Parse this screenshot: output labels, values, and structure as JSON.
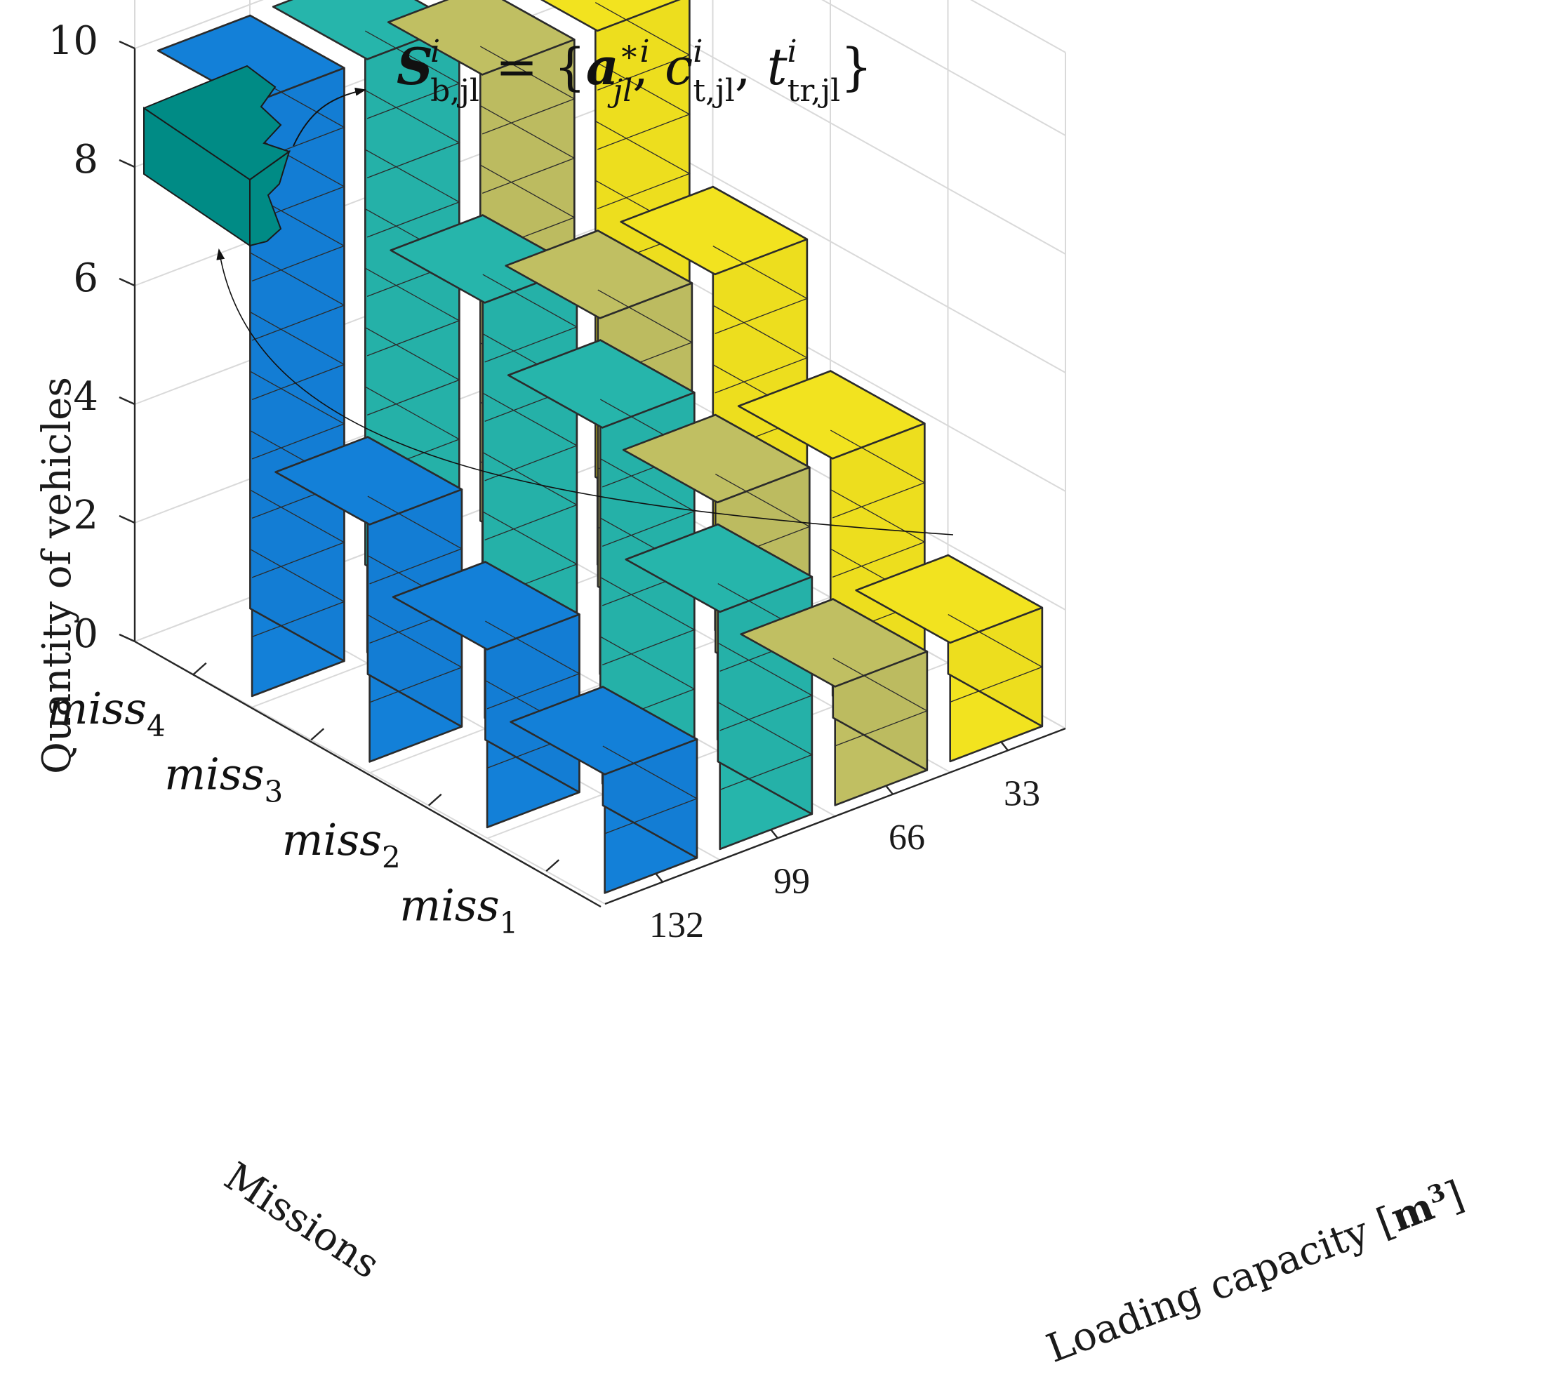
{
  "chart_data": {
    "type": "bar3d",
    "zlabel": "Quantity of vehicles",
    "ylabel": "Missions",
    "xlabel": "Loading capacity [m³]",
    "xlabel_main": "Loading capacity",
    "xlabel_unit": "m",
    "xlabel_unit_exp": "3",
    "zlim": [
      0,
      10
    ],
    "zticks": [
      "0",
      "2",
      "4",
      "6",
      "8",
      "10"
    ],
    "missions": [
      {
        "label": "miss",
        "sub": "1"
      },
      {
        "label": "miss",
        "sub": "2"
      },
      {
        "label": "miss",
        "sub": "3"
      },
      {
        "label": "miss",
        "sub": "4"
      }
    ],
    "capacities": [
      "132",
      "99",
      "66",
      "33"
    ],
    "grid": true,
    "series": [
      {
        "name": "132",
        "color": "#1380d8",
        "values": [
          2,
          3,
          4,
          10
        ]
      },
      {
        "name": "99",
        "color": "#26b5ab",
        "values": [
          4,
          6,
          7,
          10
        ]
      },
      {
        "name": "66",
        "color": "#c0bf62",
        "values": [
          2,
          4,
          6,
          9
        ]
      },
      {
        "name": "33",
        "color": "#f2e31f",
        "values": [
          2,
          4,
          6,
          9
        ]
      }
    ],
    "annotation": {
      "formula_S": "S",
      "formula_S_sup": "i",
      "formula_S_sub": "b,jl",
      "formula_eq": " = {",
      "formula_a": "a",
      "formula_a_sup": "∗i",
      "formula_a_sub": "jl",
      "formula_c": "c",
      "formula_c_sup": "i",
      "formula_c_sub": "t,jl",
      "formula_t": "t",
      "formula_t_sup": "i",
      "formula_t_sub": "tr,jl",
      "formula_sep": ", ",
      "formula_close": "}",
      "block_color": "#008b85"
    }
  }
}
